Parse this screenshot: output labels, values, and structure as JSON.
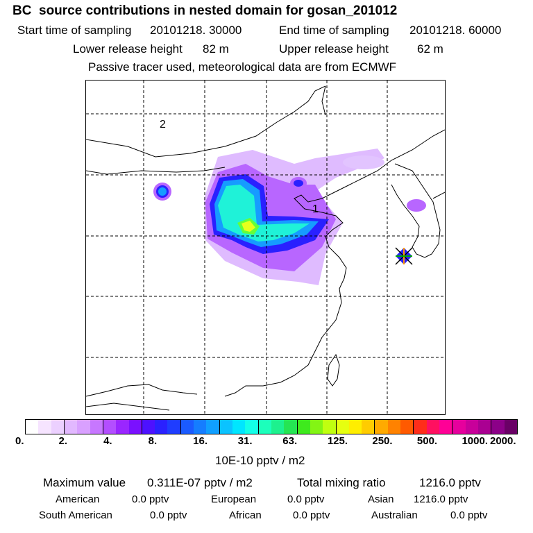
{
  "title": "BC  source contributions in nested domain for gosan_201012",
  "header": {
    "start_label": "Start time of sampling",
    "start_value": "20101218. 30000",
    "end_label": "End time of sampling",
    "end_value": "20101218. 60000",
    "lower_label": "Lower release height",
    "lower_value": "82 m",
    "upper_label": "Upper release height",
    "upper_value": "62 m",
    "note": "Passive tracer used, meteorological data are from ECMWF"
  },
  "map": {
    "label_2": "2",
    "label_1": "1",
    "receptor": "Gosan",
    "plume_colors": [
      "#d9a8ff",
      "#b25cff",
      "#7a18ff",
      "#1f1cff",
      "#12a0ff",
      "#1ff2d8",
      "#63ff3a",
      "#e8ff1c"
    ]
  },
  "colorbar": {
    "colors": [
      "#ffffff",
      "#f6e4ff",
      "#ecd0ff",
      "#e2b8ff",
      "#d9a0ff",
      "#c777ff",
      "#b34eff",
      "#9a26ff",
      "#7a10ff",
      "#4d11ff",
      "#2a21ff",
      "#1f3dff",
      "#1b5bff",
      "#157dff",
      "#109fff",
      "#0bc3ff",
      "#00e6ff",
      "#13ffe8",
      "#1cffbb",
      "#1df18e",
      "#25e553",
      "#3eea1d",
      "#83f514",
      "#c0ff10",
      "#e6ff10",
      "#ffee00",
      "#ffcc00",
      "#ffaa00",
      "#ff8200",
      "#ff5a00",
      "#ff2d1a",
      "#ff1060",
      "#ff0096",
      "#e6009d",
      "#c8009a",
      "#aa0092",
      "#8c0088",
      "#6a0066"
    ],
    "tick_labels": [
      "0.",
      "2.",
      "4.",
      "8.",
      "16.",
      "31.",
      "63.",
      "125.",
      "250.",
      "500.",
      "1000.",
      "2000."
    ],
    "unit": "10E-10 pptv / m2"
  },
  "summary": {
    "max_label": "Maximum value",
    "max_value": "0.311E-07 pptv / m2",
    "total_label": "Total mixing ratio",
    "total_value": "1216.0 pptv",
    "regions": [
      {
        "name": "American",
        "value": "0.0 pptv"
      },
      {
        "name": "European",
        "value": "0.0 pptv"
      },
      {
        "name": "Asian",
        "value": "1216.0 pptv"
      },
      {
        "name": "South American",
        "value": "0.0 pptv"
      },
      {
        "name": "African",
        "value": "0.0 pptv"
      },
      {
        "name": "Australian",
        "value": "0.0 pptv"
      }
    ]
  }
}
